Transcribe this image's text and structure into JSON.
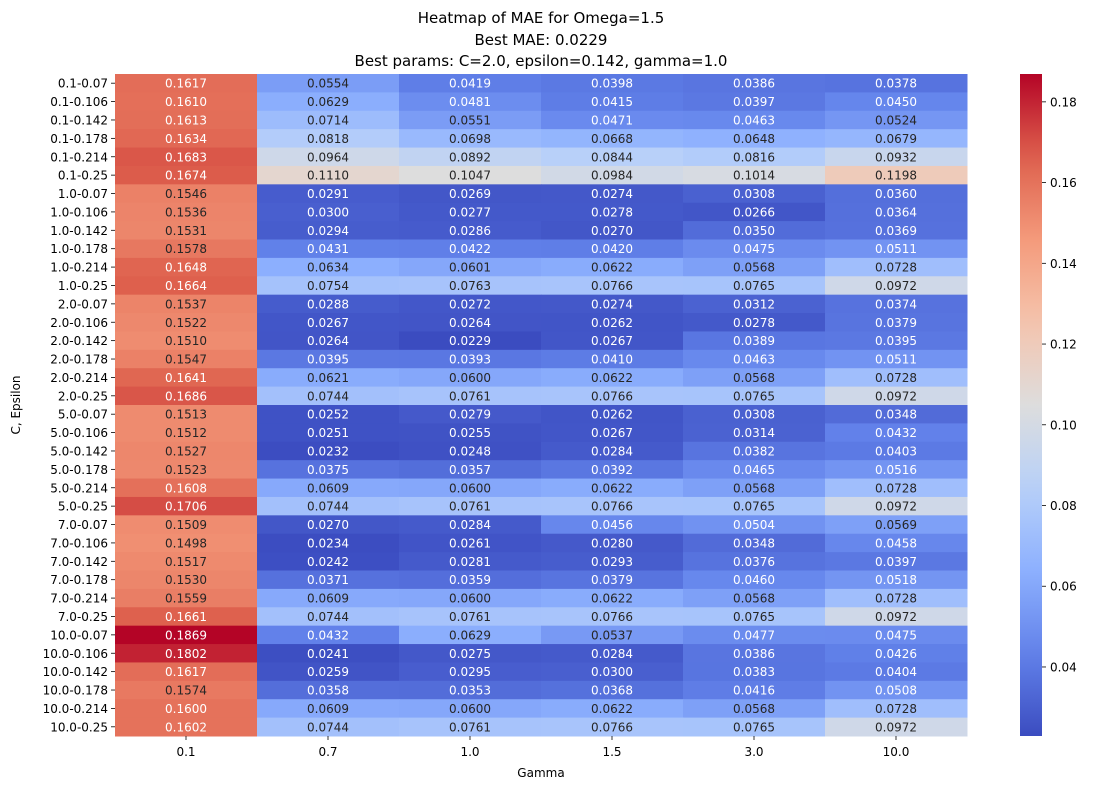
{
  "chart_data": {
    "type": "heatmap",
    "title_lines": [
      "Heatmap of MAE for Omega=1.5",
      "Best MAE: 0.0229",
      "Best params: C=2.0, epsilon=0.142, gamma=1.0"
    ],
    "xlabel": "Gamma",
    "ylabel": "C, Epsilon",
    "x_categories": [
      "0.1",
      "0.7",
      "1.0",
      "1.5",
      "3.0",
      "10.0"
    ],
    "y_categories": [
      "0.1-0.07",
      "0.1-0.106",
      "0.1-0.142",
      "0.1-0.178",
      "0.1-0.214",
      "0.1-0.25",
      "1.0-0.07",
      "1.0-0.106",
      "1.0-0.142",
      "1.0-0.178",
      "1.0-0.214",
      "1.0-0.25",
      "2.0-0.07",
      "2.0-0.106",
      "2.0-0.142",
      "2.0-0.178",
      "2.0-0.214",
      "2.0-0.25",
      "5.0-0.07",
      "5.0-0.106",
      "5.0-0.142",
      "5.0-0.178",
      "5.0-0.214",
      "5.0-0.25",
      "7.0-0.07",
      "7.0-0.106",
      "7.0-0.142",
      "7.0-0.178",
      "7.0-0.214",
      "7.0-0.25",
      "10.0-0.07",
      "10.0-0.106",
      "10.0-0.142",
      "10.0-0.178",
      "10.0-0.214",
      "10.0-0.25"
    ],
    "values": [
      [
        0.1617,
        0.0554,
        0.0419,
        0.0398,
        0.0386,
        0.0378
      ],
      [
        0.161,
        0.0629,
        0.0481,
        0.0415,
        0.0397,
        0.045
      ],
      [
        0.1613,
        0.0714,
        0.0551,
        0.0471,
        0.0463,
        0.0524
      ],
      [
        0.1634,
        0.0818,
        0.0698,
        0.0668,
        0.0648,
        0.0679
      ],
      [
        0.1683,
        0.0964,
        0.0892,
        0.0844,
        0.0816,
        0.0932
      ],
      [
        0.1674,
        0.111,
        0.1047,
        0.0984,
        0.1014,
        0.1198
      ],
      [
        0.1546,
        0.0291,
        0.0269,
        0.0274,
        0.0308,
        0.036
      ],
      [
        0.1536,
        0.03,
        0.0277,
        0.0278,
        0.0266,
        0.0364
      ],
      [
        0.1531,
        0.0294,
        0.0286,
        0.027,
        0.035,
        0.0369
      ],
      [
        0.1578,
        0.0431,
        0.0422,
        0.042,
        0.0475,
        0.0511
      ],
      [
        0.1648,
        0.0634,
        0.0601,
        0.0622,
        0.0568,
        0.0728
      ],
      [
        0.1664,
        0.0754,
        0.0763,
        0.0766,
        0.0765,
        0.0972
      ],
      [
        0.1537,
        0.0288,
        0.0272,
        0.0274,
        0.0312,
        0.0374
      ],
      [
        0.1522,
        0.0267,
        0.0264,
        0.0262,
        0.0278,
        0.0379
      ],
      [
        0.151,
        0.0264,
        0.0229,
        0.0267,
        0.0389,
        0.0395
      ],
      [
        0.1547,
        0.0395,
        0.0393,
        0.041,
        0.0463,
        0.0511
      ],
      [
        0.1641,
        0.0621,
        0.06,
        0.0622,
        0.0568,
        0.0728
      ],
      [
        0.1686,
        0.0744,
        0.0761,
        0.0766,
        0.0765,
        0.0972
      ],
      [
        0.1513,
        0.0252,
        0.0279,
        0.0262,
        0.0308,
        0.0348
      ],
      [
        0.1512,
        0.0251,
        0.0255,
        0.0267,
        0.0314,
        0.0432
      ],
      [
        0.1527,
        0.0232,
        0.0248,
        0.0284,
        0.0382,
        0.0403
      ],
      [
        0.1523,
        0.0375,
        0.0357,
        0.0392,
        0.0465,
        0.0516
      ],
      [
        0.1608,
        0.0609,
        0.06,
        0.0622,
        0.0568,
        0.0728
      ],
      [
        0.1706,
        0.0744,
        0.0761,
        0.0766,
        0.0765,
        0.0972
      ],
      [
        0.1509,
        0.027,
        0.0284,
        0.0456,
        0.0504,
        0.0569
      ],
      [
        0.1498,
        0.0234,
        0.0261,
        0.028,
        0.0348,
        0.0458
      ],
      [
        0.1517,
        0.0242,
        0.0281,
        0.0293,
        0.0376,
        0.0397
      ],
      [
        0.153,
        0.0371,
        0.0359,
        0.0379,
        0.046,
        0.0518
      ],
      [
        0.1559,
        0.0609,
        0.06,
        0.0622,
        0.0568,
        0.0728
      ],
      [
        0.1661,
        0.0744,
        0.0761,
        0.0766,
        0.0765,
        0.0972
      ],
      [
        0.1869,
        0.0432,
        0.0629,
        0.0537,
        0.0477,
        0.0475
      ],
      [
        0.1802,
        0.0241,
        0.0275,
        0.0284,
        0.0386,
        0.0426
      ],
      [
        0.1617,
        0.0259,
        0.0295,
        0.03,
        0.0383,
        0.0404
      ],
      [
        0.1574,
        0.0358,
        0.0353,
        0.0368,
        0.0416,
        0.0508
      ],
      [
        0.16,
        0.0609,
        0.06,
        0.0622,
        0.0568,
        0.0728
      ],
      [
        0.1602,
        0.0744,
        0.0761,
        0.0766,
        0.0765,
        0.0972
      ]
    ],
    "value_format_decimals": 4,
    "colormap": "coolwarm",
    "color_range": [
      0.0229,
      0.1869
    ],
    "colorbar_ticks": [
      "0.04",
      "0.06",
      "0.08",
      "0.10",
      "0.12",
      "0.14",
      "0.16",
      "0.18"
    ],
    "colorbar_tick_values": [
      0.04,
      0.06,
      0.08,
      0.1,
      0.12,
      0.14,
      0.16,
      0.18
    ],
    "grid": false,
    "legend": "colorbar-right"
  }
}
